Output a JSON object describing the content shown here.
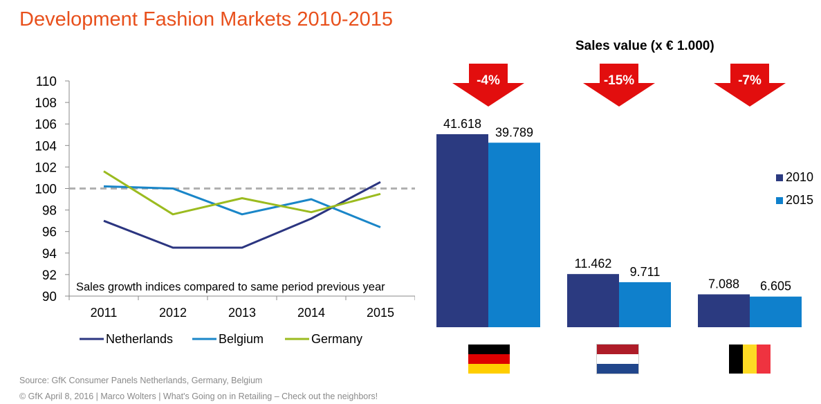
{
  "title": "Development Fashion Markets 2010-2015",
  "bar_subtitle": "Sales value (x € 1.000)",
  "footer": {
    "source": "Source: GfK Consumer Panels Netherlands, Germany, Belgium",
    "copyright": "© GfK April 8, 2016 | Marco Wolters | What's Going on in Retailing – Check out the neighbors!"
  },
  "colors": {
    "title": "#e8501c",
    "netherlands": "#2b3580",
    "belgium": "#1a86c8",
    "germany": "#9bbb1f",
    "bar_2010": "#2b3a80",
    "bar_2015": "#0f80cc",
    "arrow": "#e20e0e",
    "reference_line": "#b0b0b0"
  },
  "flags": [
    {
      "icon": "germany-flag-icon",
      "colors": [
        "#000000",
        "#dd0000",
        "#ffce00"
      ]
    },
    {
      "icon": "netherlands-flag-icon",
      "colors": [
        "#ae1c28",
        "#ffffff",
        "#21468b"
      ]
    },
    {
      "icon": "belgium-flag-icon",
      "colors": [
        "#000000",
        "#fdda24",
        "#ef3340"
      ]
    }
  ],
  "chart_data": [
    {
      "type": "line",
      "x": [
        "2011",
        "2012",
        "2013",
        "2014",
        "2015"
      ],
      "ylim": [
        90,
        110
      ],
      "yticks": [
        90,
        92,
        94,
        96,
        98,
        100,
        102,
        104,
        106,
        108,
        110
      ],
      "reference_line": 100,
      "annotation": "Sales growth indices compared to same period previous year",
      "legend_position": "bottom",
      "series": [
        {
          "name": "Netherlands",
          "values": [
            97.0,
            94.5,
            94.5,
            97.2,
            100.6
          ]
        },
        {
          "name": "Belgium",
          "values": [
            100.2,
            100.0,
            97.6,
            99.0,
            96.4
          ]
        },
        {
          "name": "Germany",
          "values": [
            101.6,
            97.6,
            99.1,
            97.8,
            99.5
          ]
        }
      ]
    },
    {
      "type": "bar",
      "title": "Sales value (x € 1.000)",
      "categories": [
        "Germany",
        "Netherlands",
        "Belgium"
      ],
      "legend_position": "right",
      "series": [
        {
          "name": "2010",
          "values": [
            41618,
            11462,
            7088
          ],
          "labels": [
            "41.618",
            "11.462",
            "7.088"
          ]
        },
        {
          "name": "2015",
          "values": [
            39789,
            9711,
            6605
          ],
          "labels": [
            "39.789",
            "9.711",
            "6.605"
          ]
        }
      ],
      "changes": [
        "-4%",
        "-15%",
        "-7%"
      ]
    }
  ]
}
